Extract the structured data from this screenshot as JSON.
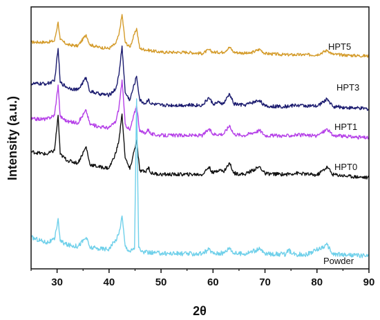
{
  "chart_data": {
    "type": "line",
    "title": "",
    "xlabel": "2θ",
    "ylabel": "Intensity (a.u.)",
    "xlim": [
      25,
      90
    ],
    "xticks": [
      30,
      40,
      50,
      60,
      70,
      80,
      90
    ],
    "yticks_shown": false,
    "grid": false,
    "legend": "none (series labeled at right end of each curve)",
    "series": [
      {
        "name": "HPT5",
        "color": "#d49b2a",
        "baseline": 8.5,
        "noise": 0.06,
        "points": [
          [
            25,
            9.0
          ],
          [
            28,
            9.0
          ],
          [
            29.5,
            9.05
          ],
          [
            30.2,
            9.8
          ],
          [
            30.6,
            9.1
          ],
          [
            32,
            8.9
          ],
          [
            34,
            8.85
          ],
          [
            35.6,
            9.3
          ],
          [
            36.3,
            8.9
          ],
          [
            38,
            8.8
          ],
          [
            40,
            8.75
          ],
          [
            41.3,
            8.95
          ],
          [
            41.9,
            9.3
          ],
          [
            42.5,
            10.1
          ],
          [
            43.1,
            9.0
          ],
          [
            44,
            8.8
          ],
          [
            45.3,
            9.55
          ],
          [
            45.9,
            8.75
          ],
          [
            47,
            8.7
          ],
          [
            50,
            8.6
          ],
          [
            55,
            8.6
          ],
          [
            58,
            8.55
          ],
          [
            59.2,
            8.7
          ],
          [
            60,
            8.6
          ],
          [
            62,
            8.6
          ],
          [
            63.2,
            8.8
          ],
          [
            64,
            8.6
          ],
          [
            67,
            8.55
          ],
          [
            69,
            8.72
          ],
          [
            70,
            8.55
          ],
          [
            74,
            8.5
          ],
          [
            80,
            8.5
          ],
          [
            82,
            8.68
          ],
          [
            83,
            8.52
          ],
          [
            86,
            8.48
          ],
          [
            90,
            8.45
          ]
        ]
      },
      {
        "name": "HPT3",
        "color": "#1a1a6e",
        "baseline": 6.3,
        "noise": 0.07,
        "points": [
          [
            25,
            7.35
          ],
          [
            28,
            7.35
          ],
          [
            29.5,
            7.45
          ],
          [
            30.2,
            8.75
          ],
          [
            30.6,
            7.4
          ],
          [
            32,
            7.2
          ],
          [
            34,
            7.1
          ],
          [
            35.6,
            7.6
          ],
          [
            36.3,
            7.05
          ],
          [
            38,
            6.95
          ],
          [
            40,
            6.9
          ],
          [
            41.3,
            7.15
          ],
          [
            41.9,
            7.7
          ],
          [
            42.5,
            8.85
          ],
          [
            43.1,
            7.0
          ],
          [
            44,
            6.7
          ],
          [
            45.3,
            7.65
          ],
          [
            45.9,
            6.7
          ],
          [
            47,
            6.55
          ],
          [
            47.6,
            6.75
          ],
          [
            48,
            6.55
          ],
          [
            50,
            6.5
          ],
          [
            55,
            6.5
          ],
          [
            58,
            6.5
          ],
          [
            59.2,
            6.8
          ],
          [
            60,
            6.55
          ],
          [
            61.2,
            6.6
          ],
          [
            62,
            6.55
          ],
          [
            63.2,
            6.95
          ],
          [
            64,
            6.55
          ],
          [
            66,
            6.5
          ],
          [
            69,
            6.7
          ],
          [
            70,
            6.45
          ],
          [
            74,
            6.45
          ],
          [
            76,
            6.5
          ],
          [
            80,
            6.45
          ],
          [
            82,
            6.75
          ],
          [
            83,
            6.45
          ],
          [
            86,
            6.4
          ],
          [
            90,
            6.35
          ]
        ]
      },
      {
        "name": "HPT1",
        "color": "#b540e8",
        "baseline": 5.1,
        "noise": 0.07,
        "points": [
          [
            25,
            5.95
          ],
          [
            28,
            5.95
          ],
          [
            29.5,
            6.1
          ],
          [
            30.2,
            7.3
          ],
          [
            30.6,
            6.05
          ],
          [
            32,
            5.85
          ],
          [
            34,
            5.8
          ],
          [
            35.6,
            6.3
          ],
          [
            36.3,
            5.75
          ],
          [
            38,
            5.65
          ],
          [
            40,
            5.6
          ],
          [
            41.3,
            5.85
          ],
          [
            41.9,
            6.4
          ],
          [
            42.5,
            7.5
          ],
          [
            43.1,
            5.75
          ],
          [
            44,
            5.5
          ],
          [
            45.3,
            6.5
          ],
          [
            45.9,
            5.45
          ],
          [
            47,
            5.4
          ],
          [
            47.6,
            5.55
          ],
          [
            48,
            5.35
          ],
          [
            50,
            5.3
          ],
          [
            55,
            5.3
          ],
          [
            58,
            5.3
          ],
          [
            59.2,
            5.55
          ],
          [
            60,
            5.35
          ],
          [
            62,
            5.35
          ],
          [
            63.2,
            5.7
          ],
          [
            64,
            5.35
          ],
          [
            66,
            5.3
          ],
          [
            69,
            5.5
          ],
          [
            70,
            5.3
          ],
          [
            74,
            5.28
          ],
          [
            76,
            5.32
          ],
          [
            80,
            5.28
          ],
          [
            82,
            5.55
          ],
          [
            83,
            5.3
          ],
          [
            86,
            5.25
          ],
          [
            90,
            5.2
          ]
        ]
      },
      {
        "name": "HPT0",
        "color": "#111111",
        "baseline": 3.6,
        "noise": 0.07,
        "points": [
          [
            25,
            4.65
          ],
          [
            28,
            4.55
          ],
          [
            29.5,
            4.7
          ],
          [
            30.2,
            6.1
          ],
          [
            30.6,
            4.55
          ],
          [
            32,
            4.3
          ],
          [
            34,
            4.2
          ],
          [
            35.6,
            4.85
          ],
          [
            36.3,
            4.15
          ],
          [
            38,
            4.05
          ],
          [
            40,
            4.0
          ],
          [
            41.3,
            4.6
          ],
          [
            41.9,
            5.1
          ],
          [
            42.5,
            6.15
          ],
          [
            43.1,
            4.4
          ],
          [
            44,
            3.95
          ],
          [
            45.3,
            5.1
          ],
          [
            45.9,
            3.9
          ],
          [
            47,
            3.85
          ],
          [
            47.6,
            4.05
          ],
          [
            48,
            3.8
          ],
          [
            50,
            3.75
          ],
          [
            55,
            3.75
          ],
          [
            58,
            3.75
          ],
          [
            59.2,
            4.05
          ],
          [
            60,
            3.8
          ],
          [
            61.2,
            3.95
          ],
          [
            62,
            3.85
          ],
          [
            63.2,
            4.2
          ],
          [
            64,
            3.8
          ],
          [
            66,
            3.75
          ],
          [
            69,
            4.05
          ],
          [
            70,
            3.78
          ],
          [
            74,
            3.75
          ],
          [
            76,
            3.8
          ],
          [
            80,
            3.72
          ],
          [
            82,
            4.05
          ],
          [
            83,
            3.75
          ],
          [
            86,
            3.68
          ],
          [
            90,
            3.62
          ]
        ]
      },
      {
        "name": "Powder",
        "color": "#6fd0ea",
        "baseline": 0.55,
        "noise": 0.09,
        "points": [
          [
            25,
            1.25
          ],
          [
            28,
            1.05
          ],
          [
            29.5,
            1.15
          ],
          [
            30.2,
            2.0
          ],
          [
            30.6,
            1.1
          ],
          [
            32,
            0.95
          ],
          [
            34,
            0.9
          ],
          [
            35.6,
            1.25
          ],
          [
            36.3,
            0.85
          ],
          [
            38,
            0.8
          ],
          [
            40,
            0.8
          ],
          [
            41.3,
            1.15
          ],
          [
            41.9,
            1.4
          ],
          [
            42.5,
            2.1
          ],
          [
            43.1,
            0.9
          ],
          [
            44,
            0.7
          ],
          [
            44.9,
            0.8
          ],
          [
            45.3,
            6.75
          ],
          [
            45.7,
            0.85
          ],
          [
            46.2,
            0.68
          ],
          [
            47,
            0.65
          ],
          [
            50,
            0.62
          ],
          [
            55,
            0.6
          ],
          [
            58,
            0.6
          ],
          [
            59.2,
            0.78
          ],
          [
            60,
            0.62
          ],
          [
            62,
            0.62
          ],
          [
            63.2,
            0.85
          ],
          [
            64,
            0.62
          ],
          [
            66,
            0.6
          ],
          [
            69,
            0.78
          ],
          [
            70,
            0.6
          ],
          [
            74,
            0.58
          ],
          [
            74.6,
            0.75
          ],
          [
            75.2,
            0.58
          ],
          [
            78,
            0.57
          ],
          [
            82,
            0.95
          ],
          [
            83,
            0.58
          ],
          [
            86,
            0.55
          ],
          [
            90,
            0.52
          ]
        ]
      }
    ]
  }
}
